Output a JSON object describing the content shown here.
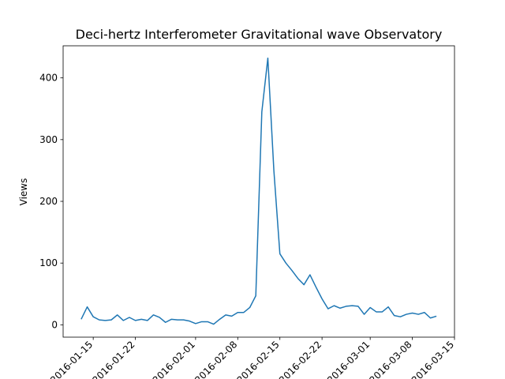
{
  "chart_data": {
    "type": "line",
    "title": "Deci-hertz Interferometer Gravitational wave Observatory",
    "xlabel": "",
    "ylabel": "Views",
    "ylim": [
      -20,
      452
    ],
    "xlim": [
      "2016-01-10",
      "2016-03-15"
    ],
    "x_ticks": [
      "2016-01-15",
      "2016-01-22",
      "2016-02-01",
      "2016-02-08",
      "2016-02-15",
      "2016-02-22",
      "2016-03-01",
      "2016-03-08",
      "2016-03-15"
    ],
    "y_ticks": [
      0,
      100,
      200,
      300,
      400
    ],
    "grid": false,
    "line_color": "#1f77b4",
    "series": [
      {
        "x": [
          "2016-01-13",
          "2016-01-14",
          "2016-01-15",
          "2016-01-16",
          "2016-01-17",
          "2016-01-18",
          "2016-01-19",
          "2016-01-20",
          "2016-01-21",
          "2016-01-22",
          "2016-01-23",
          "2016-01-24",
          "2016-01-25",
          "2016-01-26",
          "2016-01-27",
          "2016-01-28",
          "2016-01-29",
          "2016-01-30",
          "2016-01-31",
          "2016-02-01",
          "2016-02-02",
          "2016-02-03",
          "2016-02-04",
          "2016-02-05",
          "2016-02-06",
          "2016-02-07",
          "2016-02-08",
          "2016-02-09",
          "2016-02-10",
          "2016-02-11",
          "2016-02-12",
          "2016-02-13",
          "2016-02-14",
          "2016-02-15",
          "2016-02-16",
          "2016-02-17",
          "2016-02-18",
          "2016-02-19",
          "2016-02-20",
          "2016-02-21",
          "2016-02-22",
          "2016-02-23",
          "2016-02-24",
          "2016-02-25",
          "2016-02-26",
          "2016-02-27",
          "2016-02-28",
          "2016-02-29",
          "2016-03-01",
          "2016-03-02",
          "2016-03-03",
          "2016-03-04",
          "2016-03-05",
          "2016-03-06",
          "2016-03-07",
          "2016-03-08",
          "2016-03-09",
          "2016-03-10",
          "2016-03-11",
          "2016-03-12"
        ],
        "values": [
          9,
          29,
          13,
          8,
          7,
          8,
          16,
          7,
          12,
          7,
          9,
          7,
          16,
          12,
          4,
          9,
          8,
          8,
          6,
          2,
          5,
          5,
          1,
          9,
          16,
          14,
          20,
          20,
          28,
          47,
          345,
          432,
          250,
          115,
          100,
          88,
          75,
          65,
          81,
          61,
          42,
          26,
          31,
          27,
          30,
          31,
          30,
          17,
          28,
          21,
          21,
          29,
          15,
          13,
          17,
          19,
          17,
          20,
          11,
          14
        ]
      }
    ]
  }
}
